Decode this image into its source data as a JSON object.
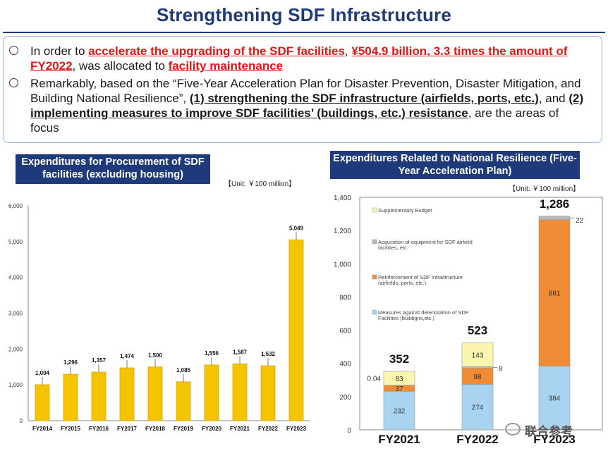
{
  "title": "Strengthening SDF Infrastructure",
  "bullets": [
    {
      "parts": [
        {
          "text": "In order to ",
          "style": "plain"
        },
        {
          "text": "accelerate the upgrading of the SDF facilities",
          "style": "red"
        },
        {
          "text": ", ",
          "style": "plain"
        },
        {
          "text": "¥504.9 billion, 3.3 times the amount of FY2022",
          "style": "red"
        },
        {
          "text": ", was allocated to ",
          "style": "plain"
        },
        {
          "text": "facility maintenance",
          "style": "red"
        }
      ]
    },
    {
      "parts": [
        {
          "text": "Remarkably, based on the “Five-Year Acceleration Plan for Disaster Prevention, Disaster Mitigation, and Building National Resilience”, ",
          "style": "plain"
        },
        {
          "text": "(1) strengthening the SDF infrastructure (airfields, ports, etc.)",
          "style": "bold-underline"
        },
        {
          "text": ", and ",
          "style": "plain"
        },
        {
          "text": "(2) implementing measures to improve SDF facilities’ (buildings, etc.) resistance",
          "style": "bold-underline"
        },
        {
          "text": ", are the areas of focus",
          "style": "plain"
        }
      ]
    }
  ],
  "watermark": "联合参考",
  "colors": {
    "navy": "#1f3a7a",
    "gold": "#f5c400",
    "red": "#e31515",
    "orange": "#f08c35",
    "light_blue": "#a8d4f2",
    "gray": "#b8b8b8",
    "light_yellow": "#fbf5b0"
  },
  "chart_data": [
    {
      "type": "bar",
      "title": "Expenditures for Procurement of SDF facilities (excluding housing)",
      "unit": "【Unit: ￥100 million】",
      "categories": [
        "FY2014",
        "FY2015",
        "FY2016",
        "FY2017",
        "FY2018",
        "FY2019",
        "FY2020",
        "FY2021",
        "FY2022",
        "FY2023"
      ],
      "values": [
        1004,
        1296,
        1357,
        1474,
        1500,
        1085,
        1556,
        1587,
        1532,
        5049
      ],
      "value_labels": [
        "1,004",
        "1,296",
        "1,357",
        "1,474",
        "1,500",
        "1,085",
        "1,556",
        "1,587",
        "1,532",
        "5,049"
      ],
      "yticks": [
        "0",
        "1,000",
        "2,000",
        "3,000",
        "4,000",
        "5,000",
        "6,000"
      ],
      "ylim": [
        0,
        6000
      ],
      "grid": false
    },
    {
      "type": "bar",
      "stacked": true,
      "title": "Expenditures Related to National Resilience (Five-Year Acceleration Plan)",
      "unit": "【Unit: ￥100 million】",
      "categories": [
        "FY2021",
        "FY2022",
        "FY2023"
      ],
      "series": [
        {
          "name": "Measures against deterioration of SDF Facilities (buildigns,etc.)",
          "values": [
            232,
            274,
            384
          ],
          "labels": [
            "232",
            "274",
            "384"
          ],
          "color": "#a8d4f2"
        },
        {
          "name": "Reinforcement of SDF infrastructure (airfields, ports, etc.)",
          "values": [
            37,
            98,
            881
          ],
          "labels": [
            "37",
            "98",
            "881"
          ],
          "color": "#f08c35"
        },
        {
          "name": "Acquisition of equipment for SDF airfield facilities, etc.",
          "values": [
            0.04,
            8,
            22
          ],
          "labels": [
            "0.04",
            "8",
            "22"
          ],
          "color": "#b8b8b8"
        },
        {
          "name": "Supplementary Budget",
          "values": [
            83,
            143,
            0
          ],
          "labels": [
            "83",
            "143",
            ""
          ],
          "color": "#fbf5b0"
        }
      ],
      "totals": [
        "352",
        "523",
        "1,286"
      ],
      "total_values": [
        352,
        523,
        1286
      ],
      "yticks": [
        "0",
        "200",
        "400",
        "600",
        "800",
        "1,000",
        "1,200",
        "1,400"
      ],
      "ylim": [
        0,
        1400
      ],
      "legend_position": "inside-left"
    }
  ]
}
